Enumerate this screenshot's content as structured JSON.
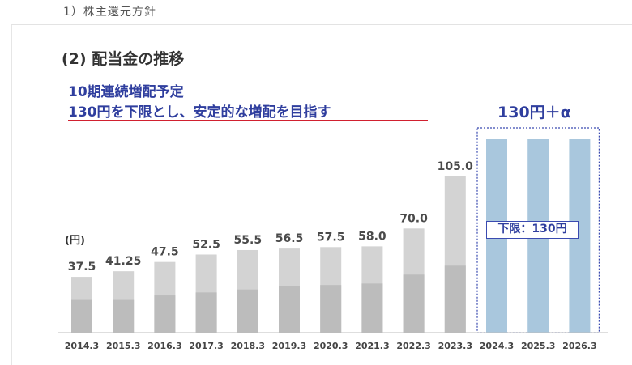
{
  "header": {
    "section": "1）株主還元方針"
  },
  "title": "(2) 配当金の推移",
  "headline": {
    "line1": "10期連続増配予定",
    "line2": "130円を下限とし、安定的な増配を目指す"
  },
  "future_label": "130円＋α",
  "floor_label": "下限：130円",
  "colors": {
    "bar_light": "#d3d3d3",
    "bar_dark": "#bcbcbc",
    "bar_future": "#a9c7dd",
    "accent_blue": "#2f3e9e",
    "underline_red": "#d1202f"
  },
  "chart_data": {
    "type": "bar",
    "ylabel": "(円)",
    "categories": [
      "2014.3",
      "2015.3",
      "2016.3",
      "2017.3",
      "2018.3",
      "2019.3",
      "2020.3",
      "2021.3",
      "2022.3",
      "2023.3",
      "2024.3",
      "2025.3",
      "2026.3"
    ],
    "values": [
      37.5,
      41.25,
      47.5,
      52.5,
      55.5,
      56.5,
      57.5,
      58.0,
      70.0,
      105.0,
      130,
      130,
      130
    ],
    "value_labels": [
      "37.5",
      "41.25",
      "47.5",
      "52.5",
      "55.5",
      "56.5",
      "57.5",
      "58.0",
      "70.0",
      "105.0",
      "",
      "",
      ""
    ],
    "lower_segment": [
      22,
      22,
      25,
      27,
      29,
      31,
      32,
      33,
      39,
      45,
      null,
      null,
      null
    ],
    "forecast": [
      false,
      false,
      false,
      false,
      false,
      false,
      false,
      false,
      false,
      false,
      true,
      true,
      true
    ],
    "ylim": [
      0,
      130
    ],
    "grid": false
  }
}
